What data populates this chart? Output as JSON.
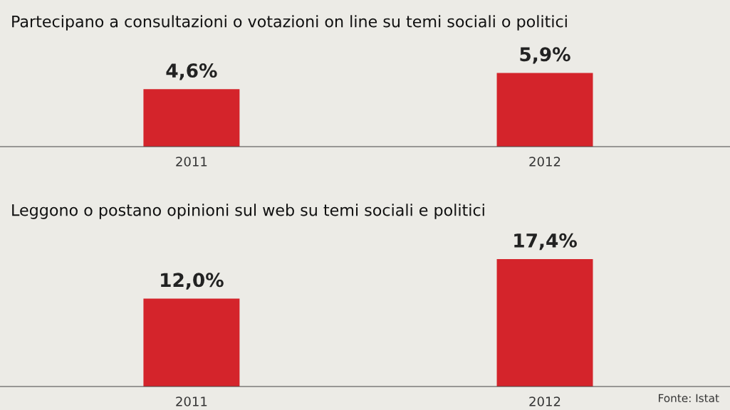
{
  "chart_data": [
    {
      "type": "bar",
      "title": "Partecipano a consultazioni o votazioni on line su temi sociali o politici",
      "categories": [
        "2011",
        "2012"
      ],
      "values": [
        4.6,
        5.9
      ],
      "value_labels": [
        "4,6%",
        "5,9%"
      ],
      "color": "#d4242b",
      "grid": false
    },
    {
      "type": "bar",
      "title": "Leggono o postano opinioni sul web su temi sociali e politici",
      "categories": [
        "2011",
        "2012"
      ],
      "values": [
        12.0,
        17.4
      ],
      "value_labels": [
        "12,0%",
        "17,4%"
      ],
      "color": "#d4242b",
      "grid": false,
      "annotations": [
        "Fonte: Istat"
      ]
    }
  ]
}
